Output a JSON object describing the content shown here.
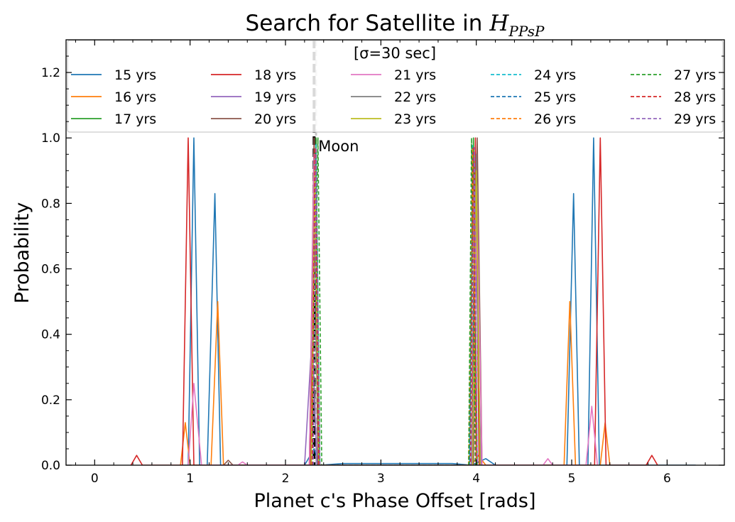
{
  "chart_data": {
    "type": "line",
    "title": "Search for Satellite in ",
    "title_math_symbol": "H",
    "title_math_subscript": "PPsP",
    "xlabel": "Planet c's Phase Offset [rads]",
    "ylabel": "Probability",
    "xlim": [
      -0.3,
      6.6
    ],
    "ylim": [
      0.0,
      1.3
    ],
    "xticks": [
      0,
      1,
      2,
      3,
      4,
      5,
      6
    ],
    "xtick_labels": [
      "0",
      "1",
      "2",
      "3",
      "4",
      "5",
      "6"
    ],
    "yticks": [
      0.0,
      0.2,
      0.4,
      0.6,
      0.8,
      1.0,
      1.2
    ],
    "ytick_labels": [
      "0.0",
      "0.2",
      "0.4",
      "0.6",
      "0.8",
      "1.0",
      "1.2"
    ],
    "legend_title": "[σ=30 sec]",
    "legend_location": "upper center",
    "vlines": [
      {
        "x": 2.32,
        "style": "dashed",
        "color": "#c8c8c8",
        "label": ""
      },
      {
        "x": 2.3,
        "style": "dashed",
        "color": "#000000",
        "label": "Moon"
      }
    ],
    "series": [
      {
        "name": "15 yrs",
        "color": "#1f77b4",
        "dash": "solid",
        "points": [
          [
            0.9,
            0
          ],
          [
            0.98,
            0
          ],
          [
            1.04,
            1.0
          ],
          [
            1.1,
            0
          ],
          [
            1.18,
            0
          ],
          [
            1.26,
            0.83
          ],
          [
            1.32,
            0
          ],
          [
            2.2,
            0
          ],
          [
            2.3,
            0.05
          ],
          [
            2.36,
            0
          ],
          [
            2.6,
            0.005
          ],
          [
            3.75,
            0.005
          ],
          [
            3.95,
            0
          ],
          [
            4.1,
            0.02
          ],
          [
            4.2,
            0
          ],
          [
            4.95,
            0
          ],
          [
            5.02,
            0.83
          ],
          [
            5.08,
            0
          ],
          [
            5.17,
            0
          ],
          [
            5.23,
            1.0
          ],
          [
            5.29,
            0
          ],
          [
            6.3,
            0
          ]
        ]
      },
      {
        "name": "16 yrs",
        "color": "#ff7f0e",
        "dash": "solid",
        "points": [
          [
            0.9,
            0
          ],
          [
            0.95,
            0.13
          ],
          [
            1.0,
            0
          ],
          [
            1.22,
            0
          ],
          [
            1.29,
            0.5
          ],
          [
            1.35,
            0
          ],
          [
            2.25,
            0
          ],
          [
            2.3,
            0.95
          ],
          [
            2.35,
            0
          ],
          [
            3.95,
            0
          ],
          [
            4.02,
            0.03
          ],
          [
            4.1,
            0
          ],
          [
            4.92,
            0
          ],
          [
            4.98,
            0.5
          ],
          [
            5.04,
            0
          ],
          [
            5.3,
            0
          ],
          [
            5.35,
            0.13
          ],
          [
            5.4,
            0
          ]
        ]
      },
      {
        "name": "17 yrs",
        "color": "#2ca02c",
        "dash": "solid",
        "points": [
          [
            2.27,
            0
          ],
          [
            2.32,
            1.0
          ],
          [
            2.36,
            0
          ],
          [
            3.93,
            0
          ],
          [
            3.97,
            1.0
          ],
          [
            4.01,
            0
          ]
        ]
      },
      {
        "name": "18 yrs",
        "color": "#d62728",
        "dash": "solid",
        "points": [
          [
            0.38,
            0
          ],
          [
            0.44,
            0.03
          ],
          [
            0.5,
            0
          ],
          [
            0.92,
            0
          ],
          [
            0.98,
            1.0
          ],
          [
            1.04,
            0
          ],
          [
            2.26,
            0
          ],
          [
            2.3,
            1.0
          ],
          [
            2.35,
            0
          ],
          [
            3.95,
            0
          ],
          [
            3.99,
            1.0
          ],
          [
            4.03,
            0
          ],
          [
            5.24,
            0
          ],
          [
            5.3,
            1.0
          ],
          [
            5.36,
            0
          ],
          [
            5.78,
            0
          ],
          [
            5.84,
            0.03
          ],
          [
            5.9,
            0
          ]
        ]
      },
      {
        "name": "19 yrs",
        "color": "#9467bd",
        "dash": "solid",
        "points": [
          [
            2.2,
            0
          ],
          [
            2.28,
            0.4
          ],
          [
            2.33,
            0
          ],
          [
            3.95,
            0
          ],
          [
            4.0,
            0.6
          ],
          [
            4.05,
            0
          ]
        ]
      },
      {
        "name": "20 yrs",
        "color": "#8c564b",
        "dash": "solid",
        "points": [
          [
            1.35,
            0
          ],
          [
            1.4,
            0.015
          ],
          [
            1.45,
            0
          ],
          [
            2.25,
            0
          ],
          [
            2.3,
            1.0
          ],
          [
            2.34,
            0
          ],
          [
            3.97,
            0
          ],
          [
            4.01,
            1.0
          ],
          [
            4.06,
            0
          ]
        ]
      },
      {
        "name": "21 yrs",
        "color": "#e377c2",
        "dash": "solid",
        "points": [
          [
            0.98,
            0
          ],
          [
            1.04,
            0.25
          ],
          [
            1.12,
            0
          ],
          [
            1.5,
            0
          ],
          [
            1.55,
            0.01
          ],
          [
            1.6,
            0
          ],
          [
            2.25,
            0
          ],
          [
            2.3,
            0.95
          ],
          [
            2.35,
            0
          ],
          [
            3.96,
            0
          ],
          [
            4.01,
            0.8
          ],
          [
            4.06,
            0
          ],
          [
            4.7,
            0
          ],
          [
            4.75,
            0.02
          ],
          [
            4.8,
            0
          ],
          [
            5.15,
            0
          ],
          [
            5.21,
            0.18
          ],
          [
            5.27,
            0
          ]
        ]
      },
      {
        "name": "22 yrs",
        "color": "#7f7f7f",
        "dash": "solid",
        "points": [
          [
            2.27,
            0
          ],
          [
            2.31,
            0.95
          ],
          [
            2.35,
            0
          ],
          [
            3.96,
            0
          ],
          [
            4.0,
            0.95
          ],
          [
            4.04,
            0
          ]
        ]
      },
      {
        "name": "23 yrs",
        "color": "#bcbd22",
        "dash": "solid",
        "points": [
          [
            2.27,
            0
          ],
          [
            2.31,
            0.9
          ],
          [
            2.35,
            0
          ],
          [
            3.96,
            0
          ],
          [
            4.0,
            0.9
          ],
          [
            4.04,
            0
          ]
        ]
      },
      {
        "name": "24 yrs",
        "color": "#17becf",
        "dash": "dashed",
        "points": [
          [
            2.28,
            0
          ],
          [
            2.32,
            0.98
          ],
          [
            2.36,
            0
          ],
          [
            3.93,
            0
          ],
          [
            3.96,
            0.98
          ],
          [
            4.0,
            0
          ]
        ]
      },
      {
        "name": "25 yrs",
        "color": "#1f77b4",
        "dash": "dashed",
        "points": [
          [
            2.28,
            0
          ],
          [
            2.32,
            0.97
          ],
          [
            2.36,
            0
          ],
          [
            3.93,
            0
          ],
          [
            3.96,
            0.97
          ],
          [
            4.0,
            0
          ]
        ]
      },
      {
        "name": "26 yrs",
        "color": "#ff7f0e",
        "dash": "dashed",
        "points": [
          [
            2.28,
            0
          ],
          [
            2.32,
            0.97
          ],
          [
            2.36,
            0
          ],
          [
            3.92,
            0
          ],
          [
            3.96,
            0.97
          ],
          [
            4.0,
            0
          ]
        ]
      },
      {
        "name": "27 yrs",
        "color": "#2ca02c",
        "dash": "dashed",
        "points": [
          [
            2.29,
            0
          ],
          [
            2.34,
            1.0
          ],
          [
            2.38,
            0
          ],
          [
            3.92,
            0
          ],
          [
            3.95,
            1.0
          ],
          [
            3.99,
            0
          ]
        ]
      },
      {
        "name": "28 yrs",
        "color": "#d62728",
        "dash": "dashed",
        "points": [
          [
            2.28,
            0
          ],
          [
            2.31,
            0.97
          ],
          [
            2.35,
            0
          ],
          [
            3.94,
            0
          ],
          [
            3.97,
            0.97
          ],
          [
            4.0,
            0
          ]
        ]
      },
      {
        "name": "29 yrs",
        "color": "#9467bd",
        "dash": "dashed",
        "points": [
          [
            2.29,
            0
          ],
          [
            2.32,
            0.97
          ],
          [
            2.36,
            0
          ],
          [
            3.95,
            0
          ],
          [
            3.98,
            0.97
          ],
          [
            4.01,
            0
          ]
        ]
      }
    ]
  }
}
